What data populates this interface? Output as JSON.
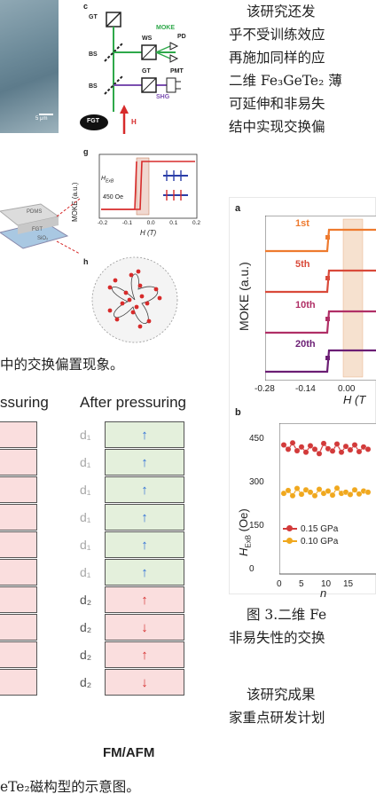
{
  "figure_top": {
    "panel_c_label": "c",
    "panel_g_label": "g",
    "panel_h_label": "h",
    "scale_bar": "5 μm",
    "optics": {
      "gt1": "GT",
      "bs1": "BS",
      "bs2": "BS",
      "ws": "WS",
      "pd": "PD",
      "moke": "MOKE",
      "gt2": "GT",
      "pmt": "PMT",
      "shg": "SHG",
      "fgt": "FGT",
      "h": "H"
    },
    "stack": {
      "pdms": "PDMS",
      "fgt": "FGT",
      "sio2": "SiO₂"
    },
    "g_plot": {
      "ylabel": "MOKE (a.u.)",
      "xlabel": "H (T)",
      "hexb": "H",
      "hexb_sub": "ExB",
      "value": "450 Oe",
      "ticks": [
        "-0.2",
        "-0.1",
        "0.0",
        "0.1",
        "0.2"
      ]
    }
  },
  "caption_top": "中的交换偏置现象。",
  "table": {
    "before_header": "ssuring",
    "after_header": "After pressuring",
    "rows": [
      {
        "d": "d₁",
        "arrow": "↑",
        "kind": "green"
      },
      {
        "d": "d₁",
        "arrow": "↑",
        "kind": "green"
      },
      {
        "d": "d₁",
        "arrow": "↑",
        "kind": "green"
      },
      {
        "d": "d₁",
        "arrow": "↑",
        "kind": "green"
      },
      {
        "d": "d₁",
        "arrow": "↑",
        "kind": "green"
      },
      {
        "d": "d₁",
        "arrow": "↑",
        "kind": "green"
      },
      {
        "d": "d₂",
        "arrow": "↑",
        "kind": "red"
      },
      {
        "d": "d₂",
        "arrow": "↓",
        "kind": "red"
      },
      {
        "d": "d₂",
        "arrow": "↑",
        "kind": "red"
      },
      {
        "d": "d₂",
        "arrow": "↓",
        "kind": "red"
      }
    ],
    "footer": "FM/AFM"
  },
  "caption_bottom": "eTe₂磁构型的示意图。",
  "text_right": {
    "lines": [
      "该研究还发",
      "乎不受训练效应",
      "再施加同样的应",
      "二维 Fe₃GeTe₂ 薄",
      "可延伸和非易失",
      "结中实现交换偏"
    ]
  },
  "figure_right": {
    "panel_a": "a",
    "panel_b": "b",
    "a_ylabel": "MOKE (a.u.)",
    "a_xlabel": "H (T",
    "a_curves": [
      "1st",
      "5th",
      "10th",
      "20th"
    ],
    "a_xticks": [
      "-0.28",
      "-0.14",
      "0.00"
    ],
    "b_ylabel": "H",
    "b_ylabel_sub": "ExB",
    "b_ylabel_unit": " (Oe)",
    "b_yticks": [
      "450",
      "300",
      "150",
      "0"
    ],
    "b_xticks": [
      "0",
      "5",
      "10",
      "15"
    ],
    "b_xlabel": "n",
    "legend": [
      "0.15 GPa",
      "0.10 GPa"
    ]
  },
  "caption_right": [
    "图 3.二维 Fe",
    "非易失性的交换"
  ],
  "footer_right": [
    "该研究成果",
    "家重点研发计划"
  ],
  "colors": {
    "curve": [
      "#ee7a2e",
      "#d94a3a",
      "#b02f66",
      "#6b1e74"
    ],
    "green": "#e4f0dc",
    "red": "#fadede",
    "series1": "#d23a3a",
    "series2": "#f0a81e"
  },
  "chart_data": [
    {
      "type": "line",
      "title": "",
      "xlabel": "n",
      "ylabel": "H_ExB (Oe)",
      "ylim": [
        -20,
        500
      ],
      "series": [
        {
          "name": "0.15 GPa",
          "x": [
            1,
            2,
            3,
            4,
            5,
            6,
            7,
            8,
            9,
            10,
            11,
            12,
            13,
            14,
            15,
            16,
            17,
            18,
            19,
            20
          ],
          "values": [
            425,
            410,
            432,
            405,
            418,
            400,
            422,
            410,
            395,
            430,
            412,
            404,
            428,
            400,
            420,
            408,
            425,
            402,
            418,
            410
          ]
        },
        {
          "name": "0.10 GPa",
          "x": [
            1,
            2,
            3,
            4,
            5,
            6,
            7,
            8,
            9,
            10,
            11,
            12,
            13,
            14,
            15,
            16,
            17,
            18,
            19,
            20
          ],
          "values": [
            258,
            268,
            250,
            275,
            255,
            270,
            262,
            250,
            272,
            258,
            266,
            252,
            276,
            258,
            262,
            254,
            270,
            256,
            266,
            262
          ]
        }
      ]
    }
  ]
}
